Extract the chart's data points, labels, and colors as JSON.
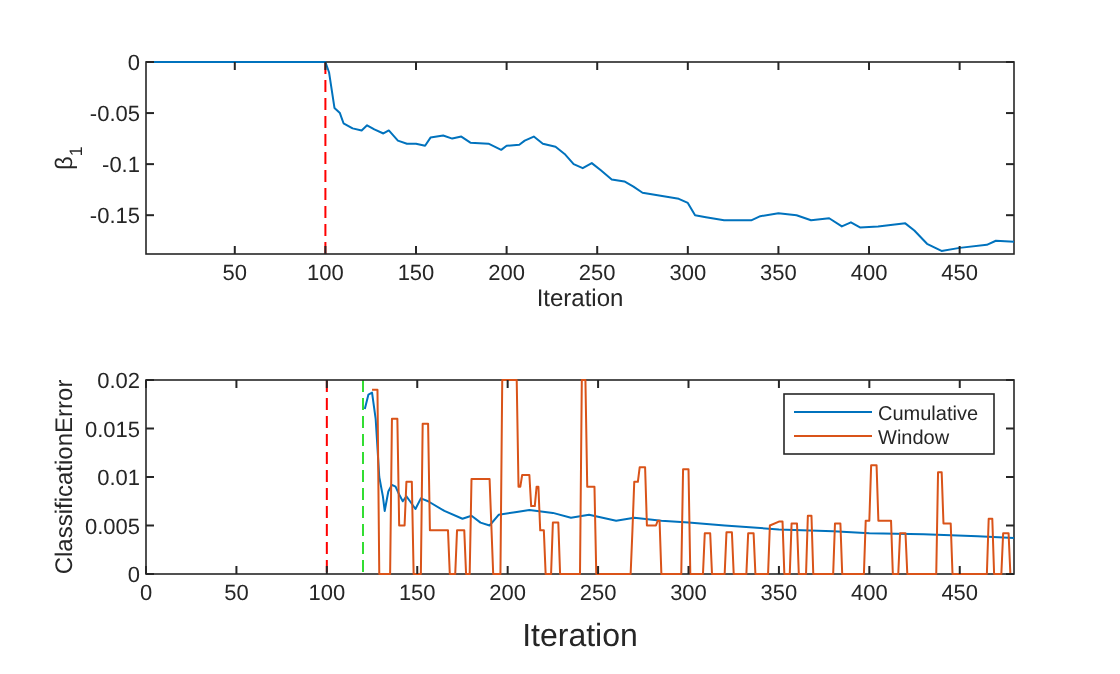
{
  "chart_data": [
    {
      "type": "line",
      "xlabel": "Iteration",
      "ylabel": "β$_{1}$",
      "xlim": [
        1,
        480
      ],
      "xticks": [
        50,
        100,
        150,
        200,
        250,
        300,
        350,
        400,
        450
      ],
      "ylim": [
        -0.188,
        0
      ],
      "yticks": [
        {
          "value": -0.15,
          "label": "-0.15"
        },
        {
          "value": -0.1,
          "label": "-0.1"
        },
        {
          "value": -0.05,
          "label": "-0.05"
        },
        0
      ],
      "grid": false,
      "legend": false,
      "series": [
        {
          "color": "#0072bd",
          "x": [
            1,
            100,
            102,
            105,
            108,
            110,
            115,
            120,
            123,
            127,
            132,
            135,
            140,
            145,
            150,
            155,
            158,
            165,
            170,
            175,
            180,
            190,
            197,
            200,
            207,
            210,
            215,
            220,
            227,
            232,
            237,
            242,
            247,
            252,
            258,
            265,
            270,
            275,
            285,
            295,
            300,
            304,
            310,
            320,
            335,
            340,
            350,
            360,
            368,
            378,
            385,
            390,
            395,
            405,
            420,
            425,
            432,
            440,
            450,
            465,
            470,
            480
          ],
          "values": [
            0,
            0,
            -0.01,
            -0.045,
            -0.05,
            -0.06,
            -0.065,
            -0.067,
            -0.062,
            -0.066,
            -0.07,
            -0.067,
            -0.077,
            -0.08,
            -0.08,
            -0.082,
            -0.074,
            -0.072,
            -0.075,
            -0.073,
            -0.079,
            -0.08,
            -0.086,
            -0.082,
            -0.081,
            -0.077,
            -0.073,
            -0.08,
            -0.083,
            -0.09,
            -0.1,
            -0.104,
            -0.099,
            -0.106,
            -0.115,
            -0.117,
            -0.122,
            -0.128,
            -0.131,
            -0.134,
            -0.138,
            -0.15,
            -0.152,
            -0.155,
            -0.155,
            -0.151,
            -0.148,
            -0.15,
            -0.155,
            -0.153,
            -0.161,
            -0.157,
            -0.162,
            -0.161,
            -0.158,
            -0.165,
            -0.178,
            -0.185,
            -0.182,
            -0.179,
            -0.175,
            -0.176
          ]
        }
      ],
      "ref_lines": [
        {
          "axis": "x",
          "value": 100,
          "color": "#ff0000",
          "line_style": "dashed"
        }
      ]
    },
    {
      "type": "line",
      "xlabel": "Iteration",
      "ylabel": "ClassificationError",
      "xlim": [
        0,
        480
      ],
      "xticks": [
        0,
        50,
        100,
        150,
        200,
        250,
        300,
        350,
        400,
        450
      ],
      "ylim": [
        0,
        0.02
      ],
      "yticks": [
        0,
        0.005,
        0.01,
        0.015,
        0.02
      ],
      "grid": false,
      "legend": "top right",
      "series": [
        {
          "name": "Cumulative",
          "color": "#0072bd",
          "x": [
            121,
            123,
            125,
            127,
            129,
            131,
            132,
            134,
            136,
            138,
            140,
            142,
            144,
            146,
            149,
            152,
            156,
            165,
            175,
            180,
            185,
            190,
            195,
            205,
            212,
            225,
            235,
            245,
            260,
            270,
            285,
            300,
            320,
            350,
            380,
            400,
            430,
            460,
            480
          ],
          "values": [
            0.017,
            0.0185,
            0.0187,
            0.016,
            0.01,
            0.008,
            0.0065,
            0.0085,
            0.0092,
            0.009,
            0.0082,
            0.0075,
            0.008,
            0.0075,
            0.0067,
            0.0078,
            0.0075,
            0.0065,
            0.0057,
            0.006,
            0.0053,
            0.005,
            0.0061,
            0.0064,
            0.0066,
            0.0063,
            0.0058,
            0.0061,
            0.0055,
            0.0058,
            0.0055,
            0.0053,
            0.005,
            0.0046,
            0.0044,
            0.0042,
            0.0041,
            0.0039,
            0.0037
          ]
        },
        {
          "name": "Window",
          "color": "#d95319",
          "x": [
            125,
            128,
            129,
            135,
            136,
            139,
            140,
            143,
            144,
            147,
            148,
            152,
            153,
            156,
            157,
            167,
            168,
            171,
            172,
            176,
            177,
            179,
            180,
            190,
            192,
            196,
            197,
            205,
            206,
            207,
            208,
            212,
            213,
            215,
            216,
            217,
            218,
            220,
            221,
            224,
            225,
            228,
            229,
            240,
            241,
            243,
            244,
            248,
            249,
            268,
            269,
            270,
            272,
            273,
            276,
            277,
            282,
            283,
            284,
            285,
            296,
            297,
            300,
            301,
            308,
            309,
            312,
            313,
            320,
            321,
            324,
            325,
            332,
            333,
            336,
            337,
            344,
            345,
            350,
            352,
            353,
            356,
            357,
            360,
            361,
            365,
            366,
            368,
            369,
            380,
            381,
            384,
            385,
            397,
            398,
            400,
            401,
            404,
            405,
            412,
            413,
            416,
            417,
            420,
            421,
            437,
            438,
            440,
            441,
            445,
            446,
            465,
            466,
            468,
            469,
            473,
            474,
            477,
            478,
            480
          ],
          "values": [
            0.019,
            0.019,
            0,
            0,
            0.016,
            0.016,
            0.005,
            0.005,
            0.0095,
            0.0095,
            0,
            0,
            0.0155,
            0.0155,
            0.0045,
            0.0045,
            0,
            0,
            0.0045,
            0.0045,
            0,
            0,
            0.0098,
            0.0098,
            0,
            0,
            0.02,
            0.02,
            0.009,
            0.009,
            0.0102,
            0.0102,
            0.007,
            0.007,
            0.009,
            0.009,
            0.0045,
            0.0045,
            0,
            0,
            0.0053,
            0.0053,
            0,
            0,
            0.02,
            0.02,
            0.009,
            0.009,
            0,
            0,
            0.0045,
            0.0095,
            0.0095,
            0.011,
            0.011,
            0.005,
            0.005,
            0.0055,
            0.0055,
            0,
            0,
            0.0108,
            0.0108,
            0,
            0,
            0.0042,
            0.0042,
            0,
            0,
            0.0043,
            0.0043,
            0,
            0,
            0.0042,
            0.0042,
            0,
            0,
            0.005,
            0.0054,
            0.0054,
            0,
            0,
            0.0052,
            0.0052,
            0,
            0,
            0.006,
            0.006,
            0,
            0,
            0.0052,
            0.0052,
            0,
            0,
            0.0055,
            0.0055,
            0.0112,
            0.0112,
            0.0055,
            0.0055,
            0,
            0,
            0.0042,
            0.0042,
            0,
            0,
            0.0105,
            0.0105,
            0.0052,
            0.0052,
            0,
            0,
            0.0057,
            0.0057,
            0,
            0,
            0.0042,
            0.0042,
            0,
            0
          ]
        }
      ],
      "ref_lines": [
        {
          "axis": "x",
          "value": 100,
          "color": "#ff0000",
          "line_style": "dashed"
        },
        {
          "axis": "x",
          "value": 120,
          "color": "#33dd33",
          "line_style": "dashed"
        }
      ]
    }
  ]
}
